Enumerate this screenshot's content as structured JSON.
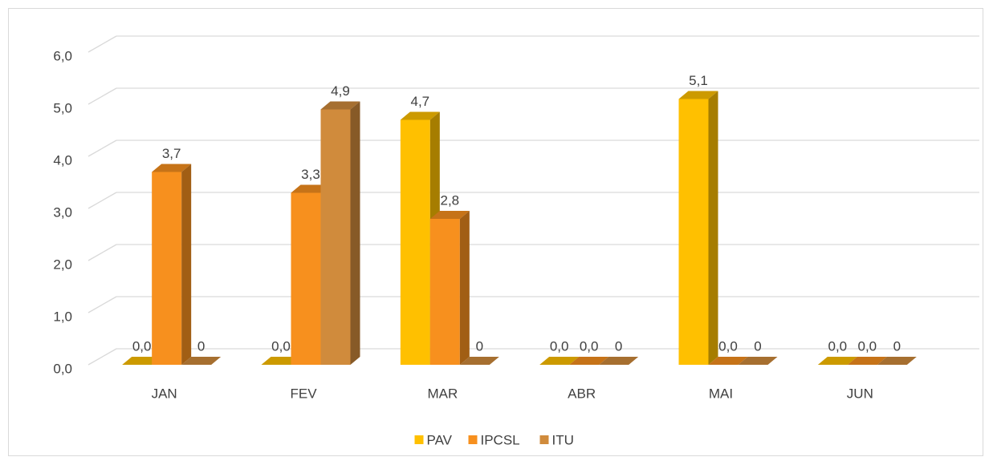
{
  "chart_data": {
    "type": "bar3d",
    "categories": [
      "JAN",
      "FEV",
      "MAR",
      "ABR",
      "MAI",
      "JUN"
    ],
    "series": [
      {
        "name": "PAV",
        "color": "#ffc000",
        "values": [
          0,
          0,
          4.7,
          0,
          5.1,
          0
        ],
        "value_labels": [
          "0,0",
          "0,0",
          "4,7",
          "0,0",
          "5,1",
          "0,0"
        ]
      },
      {
        "name": "IPCSL",
        "color": "#f7901e",
        "values": [
          3.7,
          3.3,
          2.8,
          0,
          0,
          0
        ],
        "value_labels": [
          "3,7",
          "3,3",
          "2,8",
          "0,0",
          "0,0",
          "0,0"
        ]
      },
      {
        "name": "ITU",
        "color": "#d08b3c",
        "values": [
          0,
          4.9,
          0,
          0,
          0,
          0
        ],
        "value_labels": [
          "0",
          "4,9",
          "0",
          "0",
          "0",
          "0"
        ]
      }
    ],
    "ylim": [
      0,
      6
    ],
    "yticks": [
      {
        "value": 0,
        "label": "0,0"
      },
      {
        "value": 1,
        "label": "1,0"
      },
      {
        "value": 2,
        "label": "2,0"
      },
      {
        "value": 3,
        "label": "3,0"
      },
      {
        "value": 4,
        "label": "4,0"
      },
      {
        "value": 5,
        "label": "5,0"
      },
      {
        "value": 6,
        "label": "6,0"
      }
    ],
    "grid": true,
    "legend": "bottom"
  }
}
